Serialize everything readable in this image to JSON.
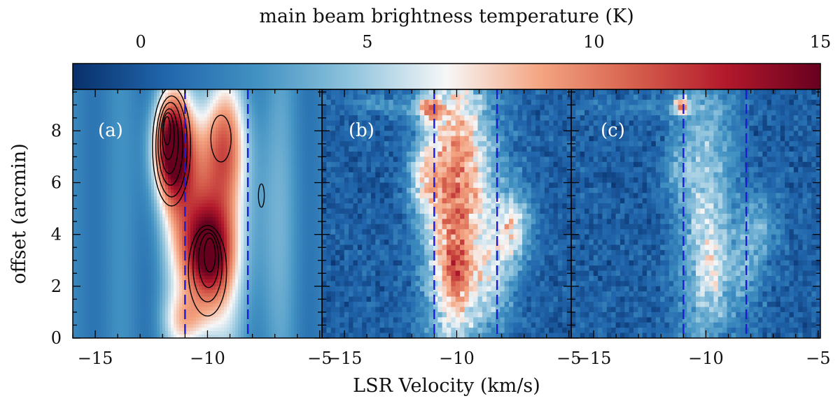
{
  "chart_data": {
    "type": "heatmap",
    "colorbar": {
      "label": "main beam brightness temperature (K)",
      "range": [
        -1.5,
        15
      ],
      "ticks": [
        0,
        5,
        10,
        15
      ],
      "tick_labels": [
        "0",
        "5",
        "10",
        "15"
      ],
      "colormap": "RdBu_r",
      "color_stops": [
        "#08306b",
        "#2166ac",
        "#4393c3",
        "#92c5de",
        "#f7f7f7",
        "#f4a582",
        "#d6604d",
        "#b2182b",
        "#67001f"
      ]
    },
    "xlabel": "LSR Velocity (km/s)",
    "ylabel": "offset (arcmin)",
    "xlim": [
      -16,
      -4.9
    ],
    "ylim": [
      0,
      9.6
    ],
    "x_ticks": [
      -15,
      -10,
      -5
    ],
    "x_tick_labels": [
      "−15",
      "−10",
      "−5"
    ],
    "y_ticks": [
      0,
      2,
      4,
      6,
      8
    ],
    "y_tick_labels": [
      "0",
      "2",
      "4",
      "6",
      "8"
    ],
    "velocity_markers": [
      -11.0,
      -8.2
    ],
    "panels": [
      {
        "label": "(a)",
        "background_K": 1.8,
        "components": [
          {
            "v0": -11.6,
            "y0": 7.4,
            "sv": 0.6,
            "sy": 1.4,
            "amp": 11.5
          },
          {
            "v0": -10.0,
            "y0": 3.2,
            "sv": 0.7,
            "sy": 1.3,
            "amp": 10.0
          },
          {
            "v0": -10.5,
            "y0": 5.4,
            "sv": 1.0,
            "sy": 2.6,
            "amp": 6.5
          },
          {
            "v0": -9.2,
            "y0": 7.6,
            "sv": 0.7,
            "sy": 1.5,
            "amp": 4.5
          },
          {
            "v0": -10.8,
            "y0": 0.6,
            "sv": 0.8,
            "sy": 0.8,
            "amp": 4.5
          },
          {
            "v0": -8.8,
            "y0": 4.5,
            "sv": 1.6,
            "sy": 4.0,
            "amp": 2.8
          }
        ],
        "contours": [
          {
            "level": 4,
            "vc": -11.6,
            "yc": 7.4,
            "rv": 0.85,
            "ry": 2.3
          },
          {
            "level": 6,
            "vc": -11.6,
            "yc": 7.4,
            "rv": 0.7,
            "ry": 1.95
          },
          {
            "level": 8,
            "vc": -11.65,
            "yc": 7.5,
            "rv": 0.55,
            "ry": 1.6
          },
          {
            "level": 10,
            "vc": -11.7,
            "yc": 7.6,
            "rv": 0.4,
            "ry": 1.25
          },
          {
            "level": 12,
            "vc": -11.75,
            "yc": 7.8,
            "rv": 0.27,
            "ry": 0.9
          },
          {
            "level": 14,
            "vc": -11.8,
            "yc": 8.0,
            "rv": 0.15,
            "ry": 0.55
          },
          {
            "level": 4,
            "vc": -10.0,
            "yc": 2.6,
            "rv": 0.85,
            "ry": 1.75
          },
          {
            "level": 6,
            "vc": -10.0,
            "yc": 2.8,
            "rv": 0.65,
            "ry": 1.4
          },
          {
            "level": 8,
            "vc": -9.95,
            "yc": 3.0,
            "rv": 0.45,
            "ry": 1.05
          },
          {
            "level": 10,
            "vc": -9.9,
            "yc": 3.2,
            "rv": 0.25,
            "ry": 0.65
          },
          {
            "level": 4,
            "vc": -9.4,
            "yc": 7.7,
            "rv": 0.45,
            "ry": 0.9
          },
          {
            "level": 4,
            "vc": -7.6,
            "yc": 5.5,
            "rv": 0.13,
            "ry": 0.45
          }
        ]
      },
      {
        "label": "(b)",
        "background_K": 0.3,
        "components": [
          {
            "v0": -10.2,
            "y0": 5.0,
            "sv": 0.9,
            "sy": 4.5,
            "amp": 8.5
          },
          {
            "v0": -11.2,
            "y0": 8.8,
            "sv": 0.35,
            "sy": 0.4,
            "amp": 6.0
          },
          {
            "v0": -11.5,
            "y0": 6.2,
            "sv": 0.45,
            "sy": 1.0,
            "amp": 4.5
          },
          {
            "v0": -10.0,
            "y0": 2.4,
            "sv": 0.45,
            "sy": 0.9,
            "amp": 3.5
          },
          {
            "v0": -7.5,
            "y0": 4.3,
            "sv": 0.6,
            "sy": 1.0,
            "amp": 5.5
          },
          {
            "v0": -8.4,
            "y0": 2.2,
            "sv": 0.7,
            "sy": 1.4,
            "amp": 4.0
          },
          {
            "v0": -9.0,
            "y0": 6.5,
            "sv": 1.0,
            "sy": 2.5,
            "amp": 3.0
          },
          {
            "v0": -13.0,
            "y0": 9.0,
            "sv": 1.6,
            "sy": 0.3,
            "amp": 2.2
          }
        ]
      },
      {
        "label": "(c)",
        "background_K": 0.3,
        "components": [
          {
            "v0": -10.0,
            "y0": 4.8,
            "sv": 0.9,
            "sy": 4.5,
            "amp": 5.0
          },
          {
            "v0": -11.1,
            "y0": 9.0,
            "sv": 0.25,
            "sy": 0.25,
            "amp": 8.0
          },
          {
            "v0": -9.7,
            "y0": 2.7,
            "sv": 0.35,
            "sy": 0.9,
            "amp": 2.5
          },
          {
            "v0": -11.3,
            "y0": 6.5,
            "sv": 0.45,
            "sy": 0.8,
            "amp": 2.0
          },
          {
            "v0": -7.6,
            "y0": 4.3,
            "sv": 0.6,
            "sy": 1.0,
            "amp": 3.0
          },
          {
            "v0": -8.3,
            "y0": 2.4,
            "sv": 0.6,
            "sy": 1.2,
            "amp": 2.5
          },
          {
            "v0": -13.0,
            "y0": 8.9,
            "sv": 1.6,
            "sy": 0.3,
            "amp": 1.5
          }
        ]
      }
    ]
  }
}
